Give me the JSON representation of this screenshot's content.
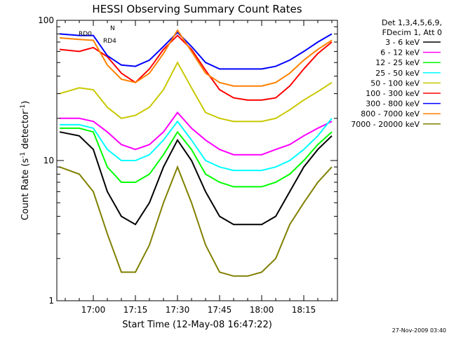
{
  "chart_data": {
    "type": "line",
    "title": "HESSI Observing Summary Count Rates",
    "xlabel": "Start Time (12-May-08 16:47:22)",
    "ylabel": "Count Rate (s",
    "ylabel_sup": "-1",
    "ylabel_tail": " detector",
    "ylabel_sup2": "-1",
    "ylabel_close": ")",
    "yscale": "log",
    "ylim": [
      1,
      100
    ],
    "xlim": [
      "16:47",
      "18:27"
    ],
    "x_ticks": [
      "17:00",
      "17:15",
      "17:30",
      "17:45",
      "18:00",
      "18:15"
    ],
    "y_ticks": [
      "1",
      "10",
      "100"
    ],
    "legend_header": [
      "Det 1,3,4,5,6,9,",
      "FDecim 1, Att 0"
    ],
    "legend_position": "right",
    "annotations": [
      "RD0",
      "N",
      "RD4"
    ],
    "footer": "27-Nov-2009 03:40",
    "series": [
      {
        "name": "3 - 6 keV",
        "color": "#000000",
        "x": [
          "16:48",
          "16:55",
          "17:00",
          "17:05",
          "17:10",
          "17:15",
          "17:20",
          "17:25",
          "17:30",
          "17:35",
          "17:40",
          "17:45",
          "17:50",
          "17:55",
          "18:00",
          "18:05",
          "18:10",
          "18:15",
          "18:20",
          "18:25"
        ],
        "y": [
          16,
          15,
          12,
          6,
          4,
          3.5,
          5,
          9,
          14,
          10,
          6,
          4,
          3.5,
          3.5,
          3.5,
          4,
          6,
          9,
          12,
          15
        ]
      },
      {
        "name": "6 - 12 keV",
        "color": "#ff00ff",
        "x": [
          "16:48",
          "16:55",
          "17:00",
          "17:05",
          "17:10",
          "17:15",
          "17:20",
          "17:25",
          "17:30",
          "17:35",
          "17:40",
          "17:45",
          "17:50",
          "17:55",
          "18:00",
          "18:05",
          "18:10",
          "18:15",
          "18:20",
          "18:25"
        ],
        "y": [
          20,
          20,
          19,
          16,
          13,
          12,
          13,
          16,
          22,
          17,
          14,
          12,
          11,
          11,
          11,
          12,
          13,
          15,
          17,
          19
        ]
      },
      {
        "name": "12 - 25 keV",
        "color": "#00ff00",
        "x": [
          "16:48",
          "16:55",
          "17:00",
          "17:05",
          "17:10",
          "17:15",
          "17:20",
          "17:25",
          "17:30",
          "17:35",
          "17:40",
          "17:45",
          "17:50",
          "17:55",
          "18:00",
          "18:05",
          "18:10",
          "18:15",
          "18:20",
          "18:25"
        ],
        "y": [
          17,
          17,
          16,
          9,
          7,
          7,
          8,
          11,
          16,
          12,
          8,
          7,
          6.5,
          6.5,
          6.5,
          7,
          8,
          10,
          13,
          16
        ]
      },
      {
        "name": "25 - 50 keV",
        "color": "#00ffff",
        "x": [
          "16:48",
          "16:55",
          "17:00",
          "17:05",
          "17:10",
          "17:15",
          "17:20",
          "17:25",
          "17:30",
          "17:35",
          "17:40",
          "17:45",
          "17:50",
          "17:55",
          "18:00",
          "18:05",
          "18:10",
          "18:15",
          "18:20",
          "18:25"
        ],
        "y": [
          18,
          18,
          17,
          12,
          10,
          10,
          11,
          14,
          19,
          14,
          10,
          9,
          8.5,
          8.5,
          8.5,
          9,
          10,
          12,
          15,
          20
        ]
      },
      {
        "name": "50 - 100 keV",
        "color": "#c8c800",
        "x": [
          "16:48",
          "16:55",
          "17:00",
          "17:05",
          "17:10",
          "17:15",
          "17:20",
          "17:25",
          "17:30",
          "17:35",
          "17:40",
          "17:45",
          "17:50",
          "17:55",
          "18:00",
          "18:05",
          "18:10",
          "18:15",
          "18:20",
          "18:25"
        ],
        "y": [
          30,
          33,
          32,
          24,
          20,
          21,
          24,
          32,
          50,
          33,
          22,
          20,
          19,
          19,
          19,
          20,
          23,
          27,
          31,
          36
        ]
      },
      {
        "name": "100 - 300 keV",
        "color": "#ff0000",
        "x": [
          "16:48",
          "16:55",
          "17:00",
          "17:05",
          "17:10",
          "17:15",
          "17:20",
          "17:25",
          "17:30",
          "17:35",
          "17:40",
          "17:45",
          "17:50",
          "17:55",
          "18:00",
          "18:05",
          "18:10",
          "18:15",
          "18:20",
          "18:25"
        ],
        "y": [
          62,
          60,
          64,
          55,
          42,
          36,
          45,
          62,
          78,
          62,
          44,
          32,
          28,
          27,
          27,
          28,
          34,
          45,
          58,
          70
        ]
      },
      {
        "name": "300 - 800 keV",
        "color": "#0000ff",
        "x": [
          "16:48",
          "16:55",
          "17:00",
          "17:05",
          "17:10",
          "17:15",
          "17:20",
          "17:25",
          "17:30",
          "17:35",
          "17:40",
          "17:45",
          "17:50",
          "17:55",
          "18:00",
          "18:05",
          "18:10",
          "18:15",
          "18:20",
          "18:25"
        ],
        "y": [
          80,
          78,
          78,
          56,
          48,
          47,
          52,
          65,
          82,
          65,
          50,
          45,
          45,
          45,
          45,
          47,
          52,
          60,
          70,
          80
        ]
      },
      {
        "name": "800 - 7000 keV",
        "color": "#ff8000",
        "x": [
          "16:48",
          "16:55",
          "17:00",
          "17:05",
          "17:10",
          "17:15",
          "17:20",
          "17:25",
          "17:30",
          "17:35",
          "17:40",
          "17:45",
          "17:50",
          "17:55",
          "18:00",
          "18:05",
          "18:10",
          "18:15",
          "18:20",
          "18:25"
        ],
        "y": [
          75,
          73,
          72,
          48,
          38,
          36,
          42,
          58,
          85,
          60,
          42,
          36,
          34,
          34,
          34,
          36,
          42,
          52,
          62,
          72
        ]
      },
      {
        "name": "7000 - 20000 keV",
        "color": "#808000",
        "x": [
          "16:48",
          "16:55",
          "17:00",
          "17:05",
          "17:10",
          "17:15",
          "17:20",
          "17:25",
          "17:30",
          "17:35",
          "17:40",
          "17:45",
          "17:50",
          "17:55",
          "18:00",
          "18:05",
          "18:10",
          "18:15",
          "18:20",
          "18:25"
        ],
        "y": [
          9,
          8,
          6,
          3,
          1.6,
          1.6,
          2.5,
          5,
          9,
          5,
          2.5,
          1.6,
          1.5,
          1.5,
          1.6,
          2,
          3.5,
          5,
          7,
          9
        ]
      }
    ]
  }
}
